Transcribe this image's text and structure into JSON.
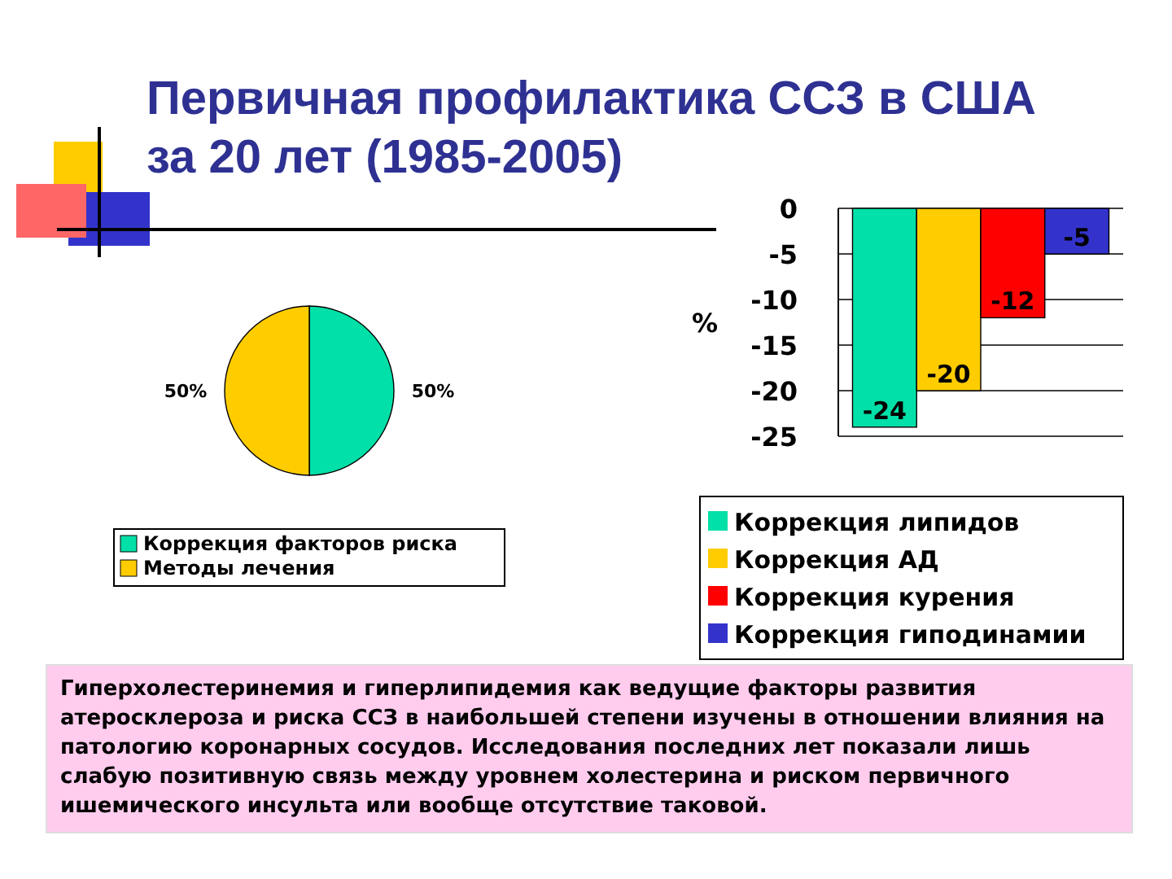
{
  "chart_data": [
    {
      "type": "pie",
      "title": "Первичная профилактика ССЗ в США за 20 лет (1985-2005)",
      "categories": [
        "Коррекция факторов риска",
        "Методы лечения"
      ],
      "values": [
        50,
        50
      ],
      "colors": [
        "#00e0a8",
        "#ffcc00"
      ],
      "value_labels": [
        "50%",
        "50%"
      ],
      "legend": "bottom"
    },
    {
      "type": "bar",
      "categories": [
        null
      ],
      "ylabel": "%",
      "ylim": [
        -25,
        0
      ],
      "yticks": [
        0,
        -5,
        -10,
        -15,
        -20,
        -25
      ],
      "grid": "y",
      "data_labels": true,
      "legend": "bottom",
      "series": [
        {
          "name": "Коррекция липидов",
          "color": "#00e0a8",
          "values": [
            -24
          ]
        },
        {
          "name": "Коррекция АД",
          "color": "#ffcc00",
          "values": [
            -20
          ]
        },
        {
          "name": "Коррекция курения",
          "color": "#ff0000",
          "values": [
            -12
          ]
        },
        {
          "name": "Коррекция гиподинамии",
          "color": "#3333cc",
          "values": [
            -5
          ]
        }
      ],
      "annotations": [
        "Гиперхолестеринемия и гиперлипидемия как ведущие факторы развития атеросклероза и риска ССЗ в наибольшей степени изучены в отношении влияния на патологию коронарных сосудов. Исследования последних лет показали лишь слабую позитивную связь между уровнем холестерина и риском первичного ишемического инсульта или вообще отсутствие таковой."
      ]
    }
  ]
}
